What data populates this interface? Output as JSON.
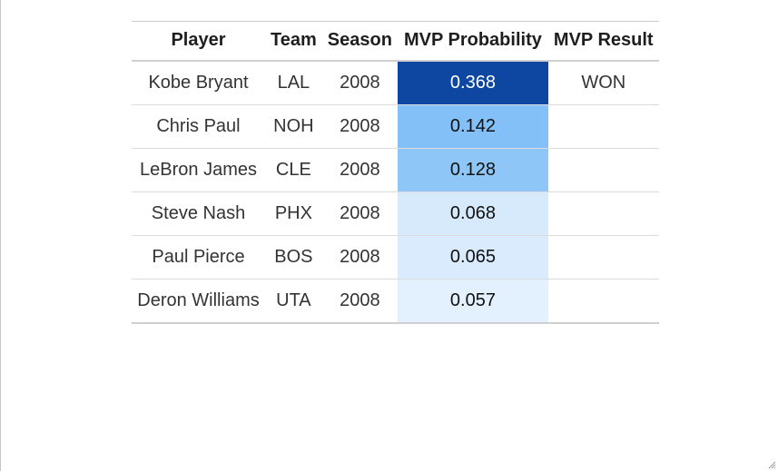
{
  "table": {
    "headers": [
      "Player",
      "Team",
      "Season",
      "MVP Probability",
      "MVP Result"
    ],
    "rows": [
      {
        "player": "Kobe Bryant",
        "team": "LAL",
        "season": "2008",
        "probability": "0.368",
        "result": "WON",
        "cell_bg": "#0d47a1",
        "cell_fg": "#ffffff"
      },
      {
        "player": "Chris Paul",
        "team": "NOH",
        "season": "2008",
        "probability": "0.142",
        "result": "",
        "cell_bg": "#82c0f7",
        "cell_fg": "#111111"
      },
      {
        "player": "LeBron James",
        "team": "CLE",
        "season": "2008",
        "probability": "0.128",
        "result": "",
        "cell_bg": "#8ec6f8",
        "cell_fg": "#111111"
      },
      {
        "player": "Steve Nash",
        "team": "PHX",
        "season": "2008",
        "probability": "0.068",
        "result": "",
        "cell_bg": "#d7eafc",
        "cell_fg": "#111111"
      },
      {
        "player": "Paul Pierce",
        "team": "BOS",
        "season": "2008",
        "probability": "0.065",
        "result": "",
        "cell_bg": "#d9ebfc",
        "cell_fg": "#111111"
      },
      {
        "player": "Deron Williams",
        "team": "UTA",
        "season": "2008",
        "probability": "0.057",
        "result": "",
        "cell_bg": "#e3f0fd",
        "cell_fg": "#111111"
      }
    ]
  }
}
